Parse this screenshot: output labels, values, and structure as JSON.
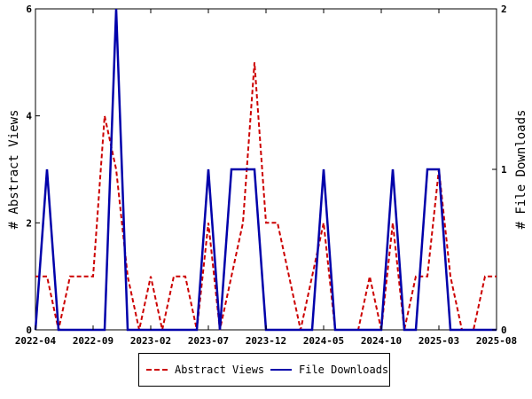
{
  "chart_data": {
    "type": "line",
    "x": [
      "2022-04",
      "2022-05",
      "2022-06",
      "2022-07",
      "2022-08",
      "2022-09",
      "2022-10",
      "2022-11",
      "2022-12",
      "2023-01",
      "2023-02",
      "2023-03",
      "2023-04",
      "2023-05",
      "2023-06",
      "2023-07",
      "2023-08",
      "2023-09",
      "2023-10",
      "2023-11",
      "2023-12",
      "2024-01",
      "2024-02",
      "2024-03",
      "2024-04",
      "2024-05",
      "2024-06",
      "2024-07",
      "2024-08",
      "2024-09",
      "2024-10",
      "2024-11",
      "2024-12",
      "2025-01",
      "2025-02",
      "2025-03",
      "2025-04",
      "2025-05",
      "2025-06",
      "2025-07",
      "2025-08"
    ],
    "x_tick_labels": [
      "2022-04",
      "2022-09",
      "2023-02",
      "2023-07",
      "2023-12",
      "2024-05",
      "2024-10",
      "2025-03",
      "2025-08"
    ],
    "series": [
      {
        "name": "Abstract Views",
        "axis": "left",
        "color": "#cc0000",
        "style": "dashed",
        "values": [
          1,
          1,
          0,
          1,
          1,
          1,
          4,
          3,
          1,
          0,
          1,
          0,
          1,
          1,
          0,
          2,
          0,
          1,
          2,
          5,
          2,
          2,
          1,
          0,
          1,
          2,
          0,
          0,
          0,
          1,
          0,
          2,
          0,
          1,
          1,
          3,
          1,
          0,
          0,
          1,
          1
        ]
      },
      {
        "name": "File Downloads",
        "axis": "right",
        "color": "#0000aa",
        "style": "solid",
        "values": [
          0,
          1,
          0,
          0,
          0,
          0,
          0,
          2,
          0,
          0,
          0,
          0,
          0,
          0,
          0,
          1,
          0,
          1,
          1,
          1,
          0,
          0,
          0,
          0,
          0,
          1,
          0,
          0,
          0,
          0,
          0,
          1,
          0,
          0,
          1,
          1,
          0,
          0,
          0,
          0,
          0
        ]
      }
    ],
    "ylabel_left": "# Abstract Views",
    "ylabel_right": "# File Downloads",
    "ylim_left": [
      0,
      6
    ],
    "ylim_right": [
      0,
      2
    ],
    "y_ticks_left": [
      "0",
      "2",
      "4",
      "6"
    ],
    "y_ticks_right": [
      "0",
      "1",
      "2"
    ],
    "grid": false,
    "legend_position": "bottom-center"
  },
  "legend": {
    "abstract_views": "Abstract Views",
    "file_downloads": "File Downloads"
  }
}
